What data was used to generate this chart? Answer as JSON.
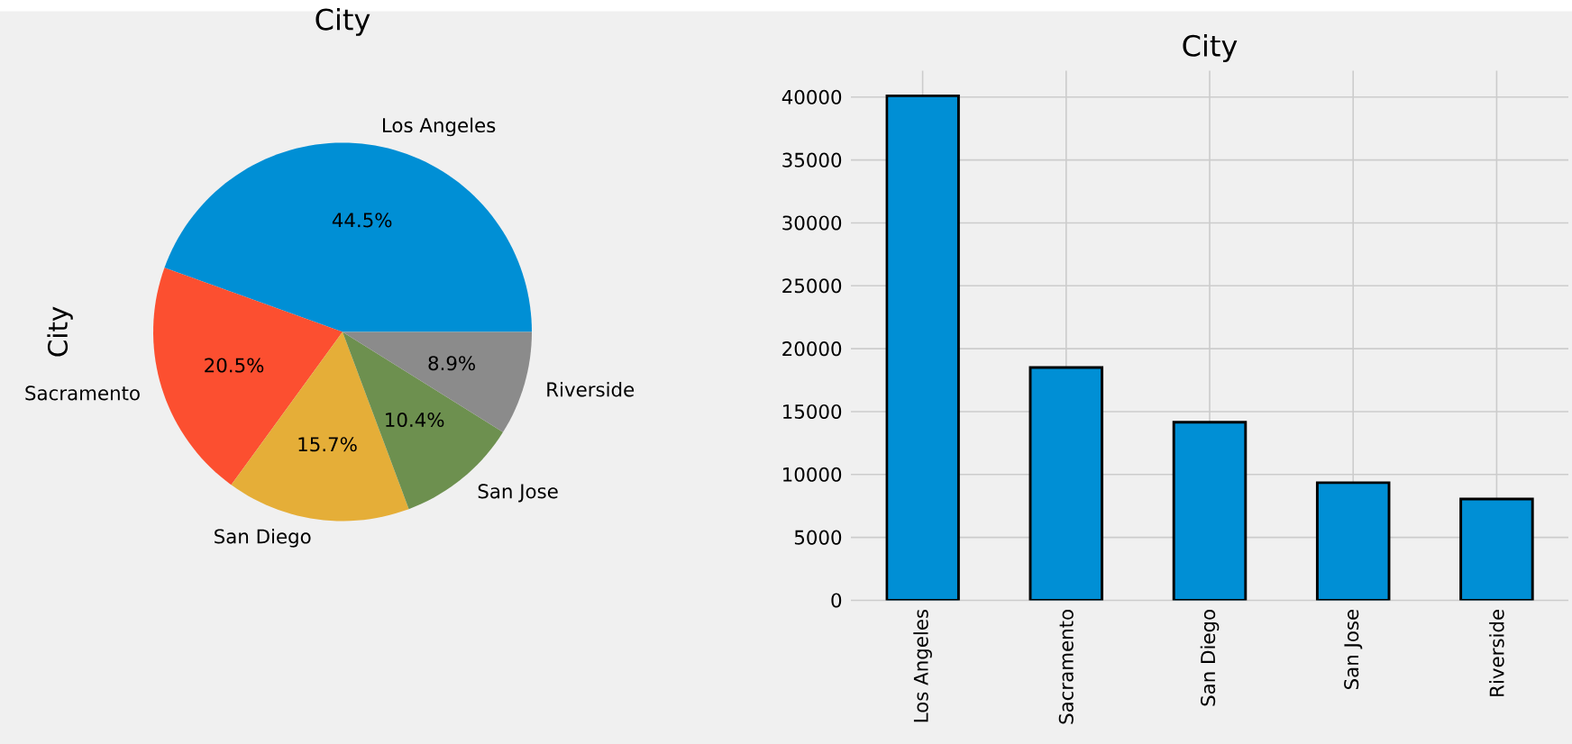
{
  "chart_data": [
    {
      "type": "pie",
      "title": "City",
      "ylabel": "City",
      "categories": [
        "Los Angeles",
        "Sacramento",
        "San Diego",
        "San Jose",
        "Riverside"
      ],
      "values": [
        44.5,
        20.5,
        15.7,
        10.4,
        8.9
      ],
      "value_labels": [
        "44.5%",
        "20.5%",
        "15.7%",
        "10.4%",
        "8.9%"
      ],
      "colors": [
        "#008fd5",
        "#fc4f30",
        "#e5ae38",
        "#6d904f",
        "#8b8b8b"
      ]
    },
    {
      "type": "bar",
      "title": "City",
      "categories": [
        "Los Angeles",
        "Sacramento",
        "San Diego",
        "San Jose",
        "Riverside"
      ],
      "values": [
        40100,
        18500,
        14150,
        9350,
        8050
      ],
      "color": "#008fd5",
      "ylim": [
        0,
        42100
      ],
      "yticks": [
        0,
        5000,
        10000,
        15000,
        20000,
        25000,
        30000,
        35000,
        40000
      ],
      "grid": true
    }
  ]
}
